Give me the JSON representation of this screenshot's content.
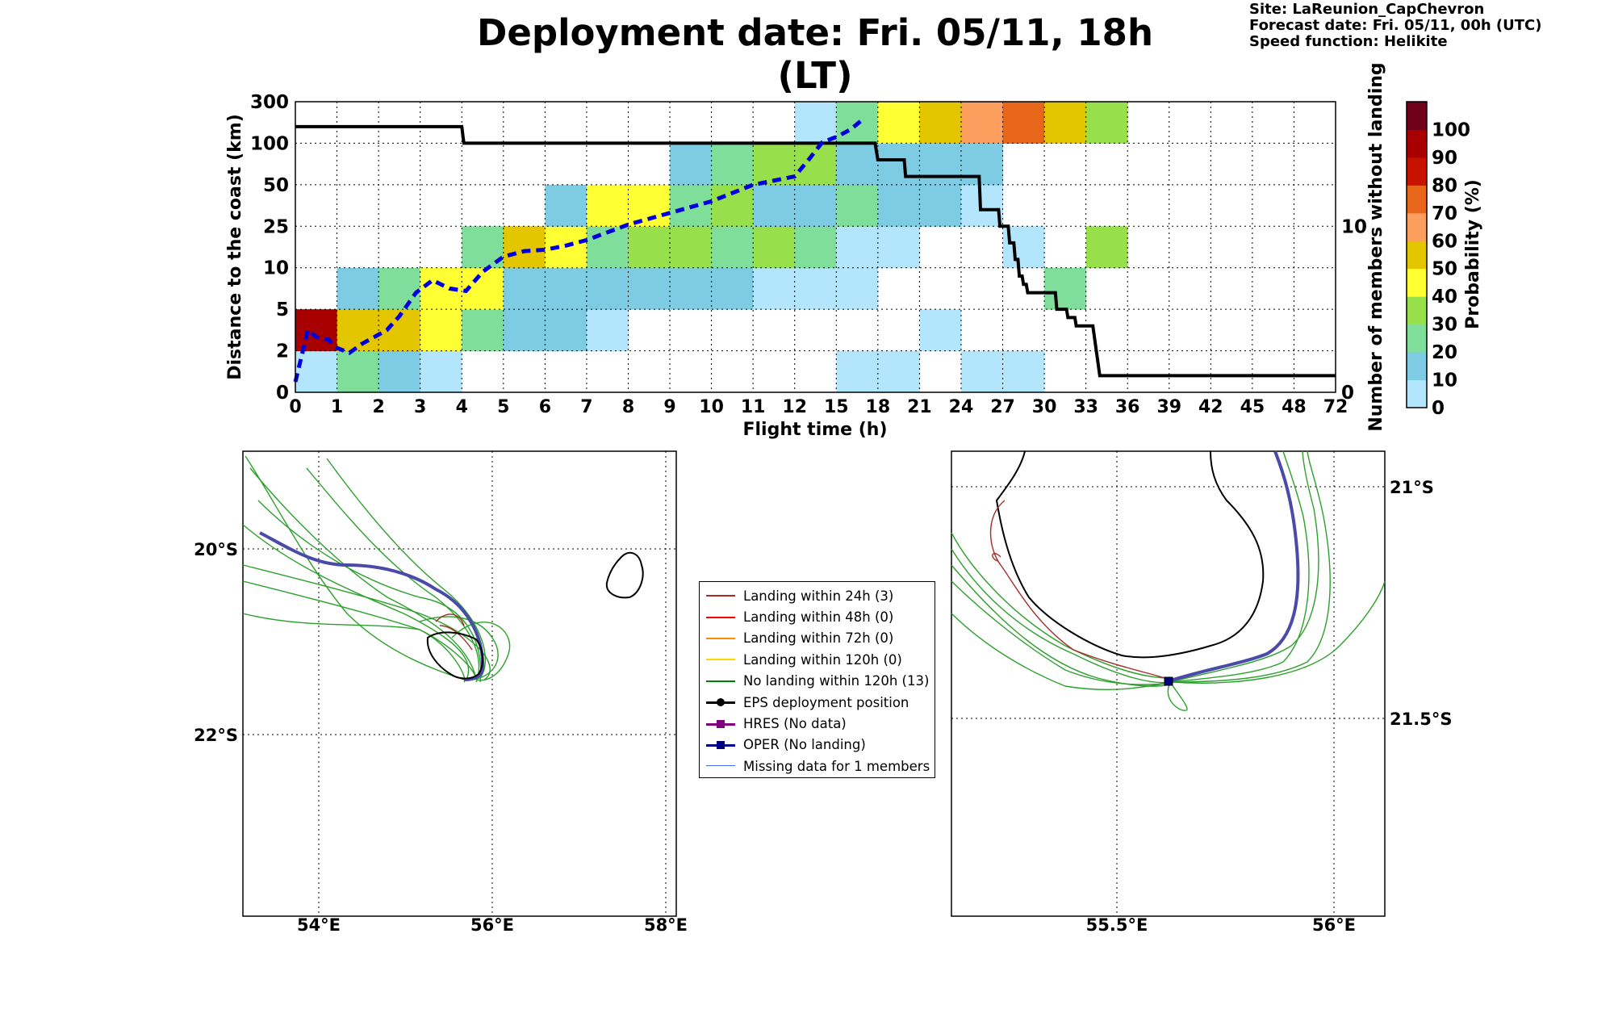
{
  "title": "Deployment date: Fri. 05/11, 18h (LT)",
  "info": {
    "site": "Site: LaReunion_CapChevron",
    "forecast": "Forecast date: Fri. 05/11, 00h (UTC)",
    "speed": "Speed function: Helikite"
  },
  "chart_data": [
    {
      "type": "heatmap",
      "xlabel": "Flight time (h)",
      "ylabel": "Distance to the coast (km)",
      "y2label": "Number of members without landing",
      "x_ticks": [
        "0",
        "1",
        "2",
        "3",
        "4",
        "5",
        "6",
        "7",
        "8",
        "9",
        "10",
        "11",
        "12",
        "15",
        "18",
        "21",
        "24",
        "27",
        "30",
        "33",
        "36",
        "39",
        "42",
        "45",
        "48",
        "72"
      ],
      "y_ticks": [
        "0",
        "2",
        "5",
        "10",
        "25",
        "50",
        "100",
        "300"
      ],
      "y2_ticks": [
        "0",
        "10"
      ],
      "y2lim": [
        0,
        17.5
      ],
      "colorbar": {
        "label": "Probability (%)",
        "ticks": [
          "0",
          "10",
          "20",
          "30",
          "40",
          "50",
          "60",
          "70",
          "80",
          "90",
          "100"
        ],
        "colors": [
          "#b3e5fc",
          "#7ecbe4",
          "#7fdf9a",
          "#97e04b",
          "#ffff33",
          "#e4c600",
          "#fc9f5e",
          "#e8661a",
          "#c81200",
          "#a80000",
          "#70001a"
        ]
      },
      "cells": [
        {
          "x": 0,
          "y": 0,
          "p": 0
        },
        {
          "x": 0,
          "y": 1,
          "p": 90
        },
        {
          "x": 1,
          "y": 0,
          "p": 20
        },
        {
          "x": 1,
          "y": 1,
          "p": 50
        },
        {
          "x": 1,
          "y": 2,
          "p": 10
        },
        {
          "x": 2,
          "y": 0,
          "p": 10
        },
        {
          "x": 2,
          "y": 1,
          "p": 50
        },
        {
          "x": 2,
          "y": 2,
          "p": 20
        },
        {
          "x": 3,
          "y": 0,
          "p": 0
        },
        {
          "x": 3,
          "y": 1,
          "p": 40
        },
        {
          "x": 3,
          "y": 2,
          "p": 40
        },
        {
          "x": 4,
          "y": 1,
          "p": 20
        },
        {
          "x": 4,
          "y": 2,
          "p": 40
        },
        {
          "x": 4,
          "y": 3,
          "p": 20
        },
        {
          "x": 5,
          "y": 1,
          "p": 10
        },
        {
          "x": 5,
          "y": 2,
          "p": 10
        },
        {
          "x": 5,
          "y": 3,
          "p": 50
        },
        {
          "x": 6,
          "y": 1,
          "p": 10
        },
        {
          "x": 6,
          "y": 2,
          "p": 10
        },
        {
          "x": 6,
          "y": 3,
          "p": 40
        },
        {
          "x": 6,
          "y": 4,
          "p": 10
        },
        {
          "x": 7,
          "y": 1,
          "p": 0
        },
        {
          "x": 7,
          "y": 2,
          "p": 10
        },
        {
          "x": 7,
          "y": 3,
          "p": 20
        },
        {
          "x": 7,
          "y": 4,
          "p": 40
        },
        {
          "x": 8,
          "y": 2,
          "p": 10
        },
        {
          "x": 8,
          "y": 3,
          "p": 30
        },
        {
          "x": 8,
          "y": 4,
          "p": 40
        },
        {
          "x": 9,
          "y": 2,
          "p": 10
        },
        {
          "x": 9,
          "y": 3,
          "p": 30
        },
        {
          "x": 9,
          "y": 4,
          "p": 20
        },
        {
          "x": 9,
          "y": 5,
          "p": 10
        },
        {
          "x": 10,
          "y": 2,
          "p": 10
        },
        {
          "x": 10,
          "y": 3,
          "p": 20
        },
        {
          "x": 10,
          "y": 4,
          "p": 30
        },
        {
          "x": 10,
          "y": 5,
          "p": 20
        },
        {
          "x": 11,
          "y": 2,
          "p": 0
        },
        {
          "x": 11,
          "y": 3,
          "p": 30
        },
        {
          "x": 11,
          "y": 4,
          "p": 10
        },
        {
          "x": 11,
          "y": 5,
          "p": 30
        },
        {
          "x": 12,
          "y": 2,
          "p": 0
        },
        {
          "x": 12,
          "y": 3,
          "p": 20
        },
        {
          "x": 12,
          "y": 4,
          "p": 10
        },
        {
          "x": 12,
          "y": 5,
          "p": 30
        },
        {
          "x": 12,
          "y": 6,
          "p": 0
        },
        {
          "x": 13,
          "y": 0,
          "p": 0
        },
        {
          "x": 13,
          "y": 2,
          "p": 0
        },
        {
          "x": 13,
          "y": 3,
          "p": 0
        },
        {
          "x": 13,
          "y": 4,
          "p": 20
        },
        {
          "x": 13,
          "y": 5,
          "p": 10
        },
        {
          "x": 13,
          "y": 6,
          "p": 20
        },
        {
          "x": 14,
          "y": 0,
          "p": 0
        },
        {
          "x": 14,
          "y": 3,
          "p": 0
        },
        {
          "x": 14,
          "y": 4,
          "p": 10
        },
        {
          "x": 14,
          "y": 5,
          "p": 10
        },
        {
          "x": 14,
          "y": 6,
          "p": 40
        },
        {
          "x": 15,
          "y": 1,
          "p": 0
        },
        {
          "x": 15,
          "y": 4,
          "p": 10
        },
        {
          "x": 15,
          "y": 5,
          "p": 10
        },
        {
          "x": 15,
          "y": 6,
          "p": 50
        },
        {
          "x": 16,
          "y": 0,
          "p": 0
        },
        {
          "x": 16,
          "y": 4,
          "p": 0
        },
        {
          "x": 16,
          "y": 5,
          "p": 10
        },
        {
          "x": 16,
          "y": 6,
          "p": 60
        },
        {
          "x": 17,
          "y": 0,
          "p": 0
        },
        {
          "x": 17,
          "y": 3,
          "p": 0
        },
        {
          "x": 17,
          "y": 6,
          "p": 70
        },
        {
          "x": 18,
          "y": 2,
          "p": 20
        },
        {
          "x": 18,
          "y": 6,
          "p": 50
        },
        {
          "x": 19,
          "y": 3,
          "p": 30
        },
        {
          "x": 19,
          "y": 6,
          "p": 30
        }
      ],
      "members_without_landing": {
        "x": [
          0,
          4,
          4.05,
          17.8,
          18,
          19.9,
          20,
          25.3,
          25.4,
          26.7,
          26.8,
          27.4,
          27.5,
          27.8,
          27.9,
          28.1,
          28.2,
          28.4,
          28.5,
          28.7,
          28.8,
          30.8,
          30.9,
          31.6,
          31.7,
          32.2,
          32.3,
          33.5,
          34,
          72
        ],
        "y": [
          16,
          16,
          15,
          15,
          14,
          14,
          13,
          13,
          11,
          11,
          10,
          10,
          9,
          9,
          8,
          8,
          7,
          7,
          6.5,
          6.5,
          6,
          6,
          5,
          5,
          4.5,
          4.5,
          4,
          4,
          1,
          1
        ]
      },
      "median_distance": {
        "x": [
          0,
          0.3,
          0.5,
          0.8,
          1,
          1.3,
          1.6,
          1.9,
          2.2,
          2.5,
          2.9,
          3.3,
          3.7,
          4.1,
          4.5,
          5,
          5.5,
          6,
          6.5,
          7,
          8,
          9,
          10,
          11,
          12,
          13,
          14,
          15,
          16,
          17
        ],
        "y": [
          0.5,
          3.5,
          3,
          2.8,
          2.2,
          1.9,
          2.5,
          3,
          3.5,
          4.5,
          7,
          8.5,
          7.5,
          7.2,
          9.5,
          14,
          16,
          16.5,
          18,
          20,
          26,
          33,
          40,
          50,
          60,
          80,
          105,
          130,
          165,
          220
        ]
      }
    },
    {
      "type": "map",
      "lon_ticks": [
        "54°E",
        "56°E",
        "58°E"
      ],
      "lat_ticks": [
        "20°S",
        "22°S"
      ]
    },
    {
      "type": "map",
      "lon_ticks": [
        "55.5°E",
        "56°E"
      ],
      "lat_ticks": [
        "21°S",
        "21.5°S"
      ]
    }
  ],
  "legend": [
    {
      "label": "Landing within 24h (3)",
      "color": "#a52a2a",
      "style": "line"
    },
    {
      "label": "Landing within 48h (0)",
      "color": "#ff0000",
      "style": "line"
    },
    {
      "label": "Landing within 72h (0)",
      "color": "#ff8c00",
      "style": "line"
    },
    {
      "label": "Landing within 120h (0)",
      "color": "#ffd700",
      "style": "line"
    },
    {
      "label": "No landing within 120h (13)",
      "color": "#008000",
      "style": "line"
    },
    {
      "label": "EPS deployment position",
      "color": "#000000",
      "style": "circle"
    },
    {
      "label": "HRES (No data)",
      "color": "#800080",
      "style": "square"
    },
    {
      "label": "OPER (No landing)",
      "color": "#000080",
      "style": "square"
    },
    {
      "label": "Missing data for 1 members",
      "color": "#4169e1",
      "style": "thin"
    }
  ]
}
